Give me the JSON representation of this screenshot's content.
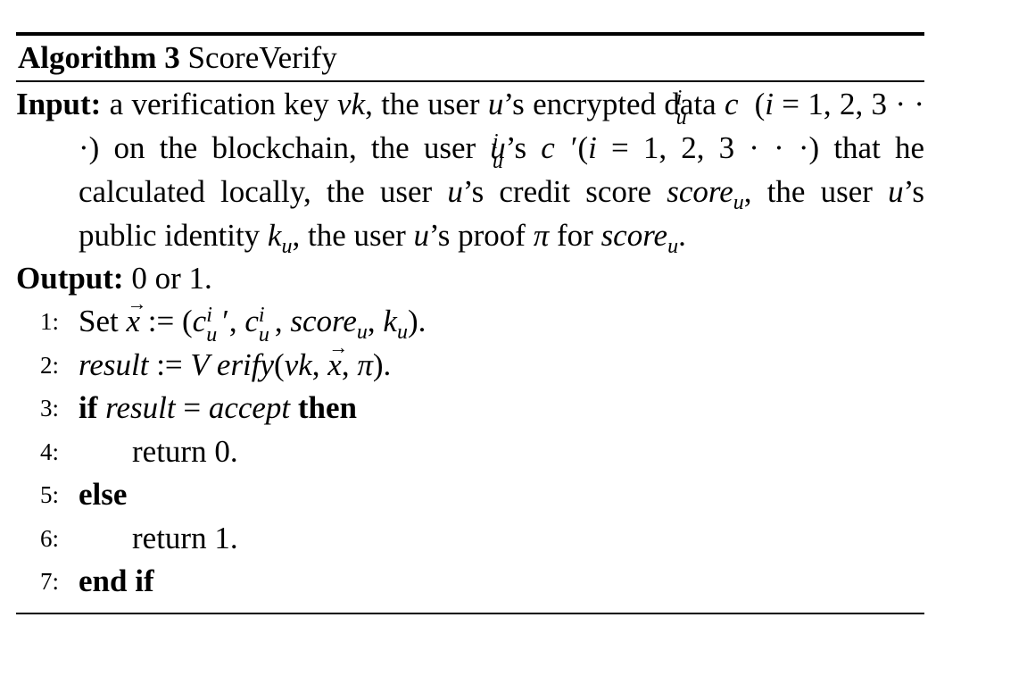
{
  "algorithm": {
    "label": "Algorithm 3",
    "name": "ScoreVerify"
  },
  "input": {
    "keyword": "Input:",
    "text": "a verification key vk, the user u’s encrypted data c_u^i(i = 1, 2, 3 · · ·) on the blockchain, the user u’s c_u^i′(i = 1, 2, 3 · · ·) that he calculated locally, the user u’s credit score score_u, the user u’s public identity k_u, the user u’s proof π for score_u."
  },
  "output": {
    "keyword": "Output:",
    "text": "0 or 1."
  },
  "lines": [
    {
      "num": "1:",
      "text": "Set x⃗ := (c_u^i′, c_u^i, score_u, k_u)."
    },
    {
      "num": "2:",
      "text": "result := Verify(vk, x⃗, π)."
    },
    {
      "num": "3:",
      "text": "if result = accept then"
    },
    {
      "num": "4:",
      "text": "return 0."
    },
    {
      "num": "5:",
      "text": "else"
    },
    {
      "num": "6:",
      "text": "return 1."
    },
    {
      "num": "7:",
      "text": "end if"
    }
  ]
}
